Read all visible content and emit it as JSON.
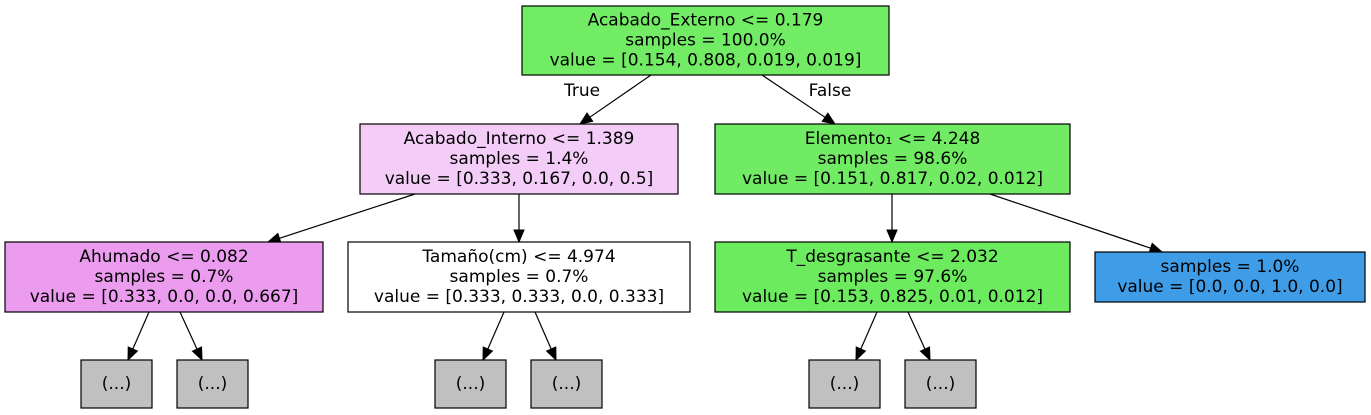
{
  "nodes": [
    {
      "id": "root",
      "color": "#72eb65",
      "lines": [
        "Acabado_Externo <= 0.179",
        "samples = 100.0%",
        "value = [0.154, 0.808, 0.019, 0.019]"
      ]
    },
    {
      "id": "n1",
      "color": "#f3cdf8",
      "lines": [
        "Acabado_Interno <= 1.389",
        "samples = 1.4%",
        "value = [0.333, 0.167, 0.0, 0.5]"
      ]
    },
    {
      "id": "n2",
      "color": "#70eb63",
      "lines": [
        "Elemento₁ <= 4.248",
        "samples = 98.6%",
        "value = [0.151, 0.817, 0.02, 0.012]"
      ]
    },
    {
      "id": "n3",
      "color": "#eb9cef",
      "lines": [
        "Ahumado <= 0.082",
        "samples = 0.7%",
        "value = [0.333, 0.0, 0.0, 0.667]"
      ]
    },
    {
      "id": "n4",
      "color": "#ffffff",
      "lines": [
        "Tamaño(cm) <= 4.974",
        "samples = 0.7%",
        "value = [0.333, 0.333, 0.0, 0.333]"
      ]
    },
    {
      "id": "n5",
      "color": "#6ceb5f",
      "lines": [
        "T_desgrasante <= 2.032",
        "samples = 97.6%",
        "value = [0.153, 0.825, 0.01, 0.012]"
      ]
    },
    {
      "id": "n6",
      "color": "#3e9de6",
      "lines": [
        "samples = 1.0%",
        "value = [0.0, 0.0, 1.0, 0.0]"
      ]
    },
    {
      "id": "t1",
      "color": "#c0c0c0",
      "lines": [
        "(...)"
      ]
    },
    {
      "id": "t2",
      "color": "#c0c0c0",
      "lines": [
        "(...)"
      ]
    },
    {
      "id": "t3",
      "color": "#c0c0c0",
      "lines": [
        "(...)"
      ]
    },
    {
      "id": "t4",
      "color": "#c0c0c0",
      "lines": [
        "(...)"
      ]
    },
    {
      "id": "t5",
      "color": "#c0c0c0",
      "lines": [
        "(...)"
      ]
    },
    {
      "id": "t6",
      "color": "#c0c0c0",
      "lines": [
        "(...)"
      ]
    }
  ],
  "edges": [
    {
      "from": "root",
      "to": "n1",
      "label": "True"
    },
    {
      "from": "root",
      "to": "n2",
      "label": "False"
    },
    {
      "from": "n1",
      "to": "n3",
      "label": ""
    },
    {
      "from": "n1",
      "to": "n4",
      "label": ""
    },
    {
      "from": "n2",
      "to": "n5",
      "label": ""
    },
    {
      "from": "n2",
      "to": "n6",
      "label": ""
    },
    {
      "from": "n3",
      "to": "t1",
      "label": ""
    },
    {
      "from": "n3",
      "to": "t2",
      "label": ""
    },
    {
      "from": "n4",
      "to": "t3",
      "label": ""
    },
    {
      "from": "n4",
      "to": "t4",
      "label": ""
    },
    {
      "from": "n5",
      "to": "t5",
      "label": ""
    },
    {
      "from": "n5",
      "to": "t6",
      "label": ""
    }
  ]
}
